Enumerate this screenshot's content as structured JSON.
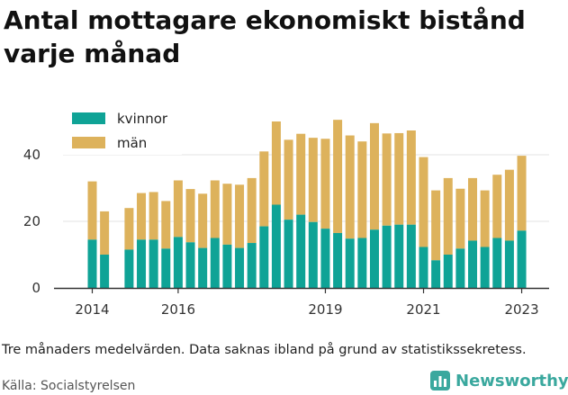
{
  "title": "Antal mottagare ekonomiskt bistånd varje månad",
  "note": "Tre månaders medelvärden. Data saknas ibland på grund av statistikssekretess.",
  "source": "Källa: Socialstyrelsen",
  "brand": "Newsworthy",
  "colors": {
    "kvinnor": "#0fa396",
    "man": "#ddb25c",
    "axis": "#333333",
    "grid": "#e3e3e3",
    "brand": "#3aa89e"
  },
  "chart_data": {
    "type": "bar",
    "stacked": true,
    "x": [
      "2014-06",
      "2014-09",
      "2014-12",
      "2015-03",
      "2015-06",
      "2015-09",
      "2015-12",
      "2016-03",
      "2016-06",
      "2016-09",
      "2016-12",
      "2017-03",
      "2017-06",
      "2017-09",
      "2017-12",
      "2018-03",
      "2018-06",
      "2018-09",
      "2018-12",
      "2019-03",
      "2019-06",
      "2019-09",
      "2019-12",
      "2020-03",
      "2020-06",
      "2020-09",
      "2020-12",
      "2021-03",
      "2021-06",
      "2021-09",
      "2021-12",
      "2022-03",
      "2022-06",
      "2022-09",
      "2022-12",
      "2023-03"
    ],
    "x_ticks": [
      "2014",
      "2016",
      "2019",
      "2021",
      "2023"
    ],
    "y_ticks": [
      0,
      20,
      40
    ],
    "ylim": [
      0,
      52
    ],
    "series": [
      {
        "name": "kvinnor",
        "values": [
          14.5,
          10,
          null,
          11.5,
          14.5,
          14.5,
          11.8,
          15.3,
          13.7,
          12,
          15,
          13,
          12,
          13.5,
          18.5,
          25,
          20.5,
          22,
          19.8,
          17.8,
          16.5,
          14.8,
          15,
          17.5,
          18.7,
          19,
          19,
          12.3,
          8.3,
          10,
          11.8,
          14.2,
          12.3,
          15,
          14.2,
          17.2
        ]
      },
      {
        "name": "män",
        "values": [
          17.5,
          13,
          null,
          12.5,
          14,
          14.3,
          14.3,
          17,
          16,
          16.3,
          17.3,
          18.3,
          19,
          19.5,
          22.5,
          25,
          24,
          24.3,
          25.3,
          27,
          34,
          31,
          29,
          32,
          27.7,
          27.5,
          28.3,
          27,
          21,
          23,
          18,
          18.8,
          17,
          19,
          21.3,
          22.5
        ]
      }
    ],
    "legend": {
      "position": "top-left"
    }
  }
}
